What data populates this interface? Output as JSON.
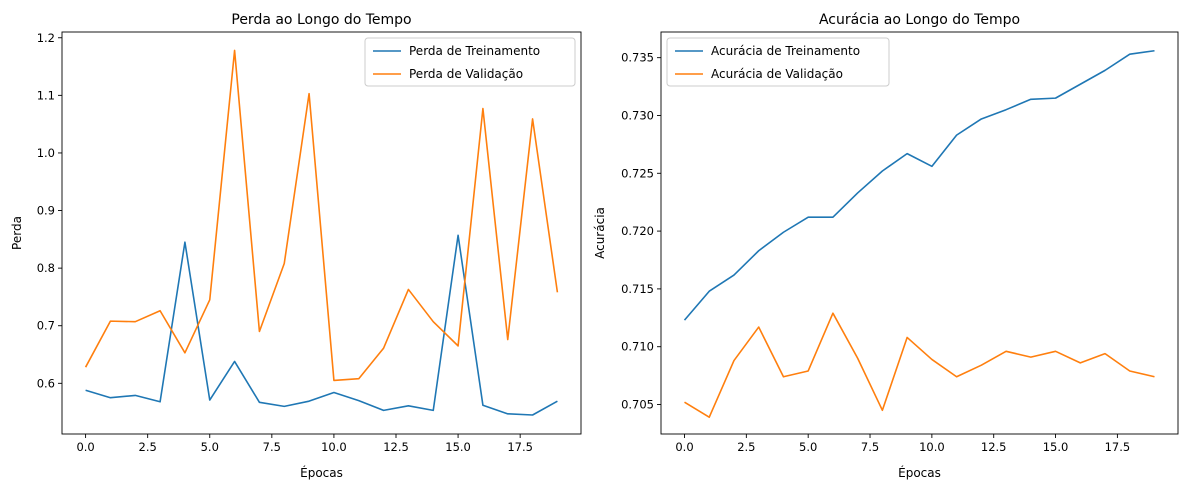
{
  "chart_data": [
    {
      "type": "line",
      "title": "Perda ao Longo do Tempo",
      "xlabel": "Épocas",
      "ylabel": "Perda",
      "x": [
        0,
        1,
        2,
        3,
        4,
        5,
        6,
        7,
        8,
        9,
        10,
        11,
        12,
        13,
        14,
        15,
        16,
        17,
        18,
        19
      ],
      "xlim": [
        -0.95,
        19.95
      ],
      "ylim": [
        0.512,
        1.21
      ],
      "xticks": [
        0.0,
        2.5,
        5.0,
        7.5,
        10.0,
        12.5,
        15.0,
        17.5
      ],
      "xtick_labels": [
        "0.0",
        "2.5",
        "5.0",
        "7.5",
        "10.0",
        "12.5",
        "15.0",
        "17.5"
      ],
      "yticks": [
        0.6,
        0.7,
        0.8,
        0.9,
        1.0,
        1.1,
        1.2
      ],
      "ytick_labels": [
        "0.6",
        "0.7",
        "0.8",
        "0.9",
        "1.0",
        "1.1",
        "1.2"
      ],
      "grid": false,
      "legend_position": "top-right",
      "series": [
        {
          "name": "Perda de Treinamento",
          "color": "#1f77b4",
          "values": [
            0.588,
            0.575,
            0.579,
            0.568,
            0.845,
            0.571,
            0.638,
            0.567,
            0.56,
            0.569,
            0.584,
            0.57,
            0.553,
            0.561,
            0.553,
            0.857,
            0.562,
            0.547,
            0.545,
            0.569
          ]
        },
        {
          "name": "Perda de Validação",
          "color": "#ff7f0e",
          "values": [
            0.628,
            0.708,
            0.707,
            0.726,
            0.653,
            0.745,
            1.178,
            0.69,
            0.808,
            1.103,
            0.605,
            0.608,
            0.661,
            0.763,
            0.707,
            0.665,
            1.077,
            0.676,
            1.059,
            0.758
          ]
        }
      ]
    },
    {
      "type": "line",
      "title": "Acurácia ao Longo do Tempo",
      "xlabel": "Épocas",
      "ylabel": "Acurácia",
      "x": [
        0,
        1,
        2,
        3,
        4,
        5,
        6,
        7,
        8,
        9,
        10,
        11,
        12,
        13,
        14,
        15,
        16,
        17,
        18,
        19
      ],
      "xlim": [
        -0.95,
        19.95
      ],
      "ylim": [
        0.70245,
        0.73722
      ],
      "xticks": [
        0.0,
        2.5,
        5.0,
        7.5,
        10.0,
        12.5,
        15.0,
        17.5
      ],
      "xtick_labels": [
        "0.0",
        "2.5",
        "5.0",
        "7.5",
        "10.0",
        "12.5",
        "15.0",
        "17.5"
      ],
      "yticks": [
        0.705,
        0.71,
        0.715,
        0.72,
        0.725,
        0.73,
        0.735
      ],
      "ytick_labels": [
        "0.705",
        "0.710",
        "0.715",
        "0.720",
        "0.725",
        "0.730",
        "0.735"
      ],
      "grid": false,
      "legend_position": "top-left",
      "series": [
        {
          "name": "Acurácia de Treinamento",
          "color": "#1f77b4",
          "values": [
            0.7123,
            0.7148,
            0.7162,
            0.7183,
            0.7199,
            0.7212,
            0.7212,
            0.7233,
            0.7252,
            0.7267,
            0.7256,
            0.7283,
            0.7297,
            0.7305,
            0.7314,
            0.7315,
            0.7327,
            0.7339,
            0.7353,
            0.7356
          ]
        },
        {
          "name": "Acurácia de Validação",
          "color": "#ff7f0e",
          "values": [
            0.7052,
            0.7039,
            0.7088,
            0.7117,
            0.7074,
            0.7079,
            0.7129,
            0.709,
            0.7045,
            0.7108,
            0.7089,
            0.7074,
            0.7084,
            0.7096,
            0.7091,
            0.7096,
            0.7086,
            0.7094,
            0.7079,
            0.7074
          ]
        }
      ]
    }
  ]
}
